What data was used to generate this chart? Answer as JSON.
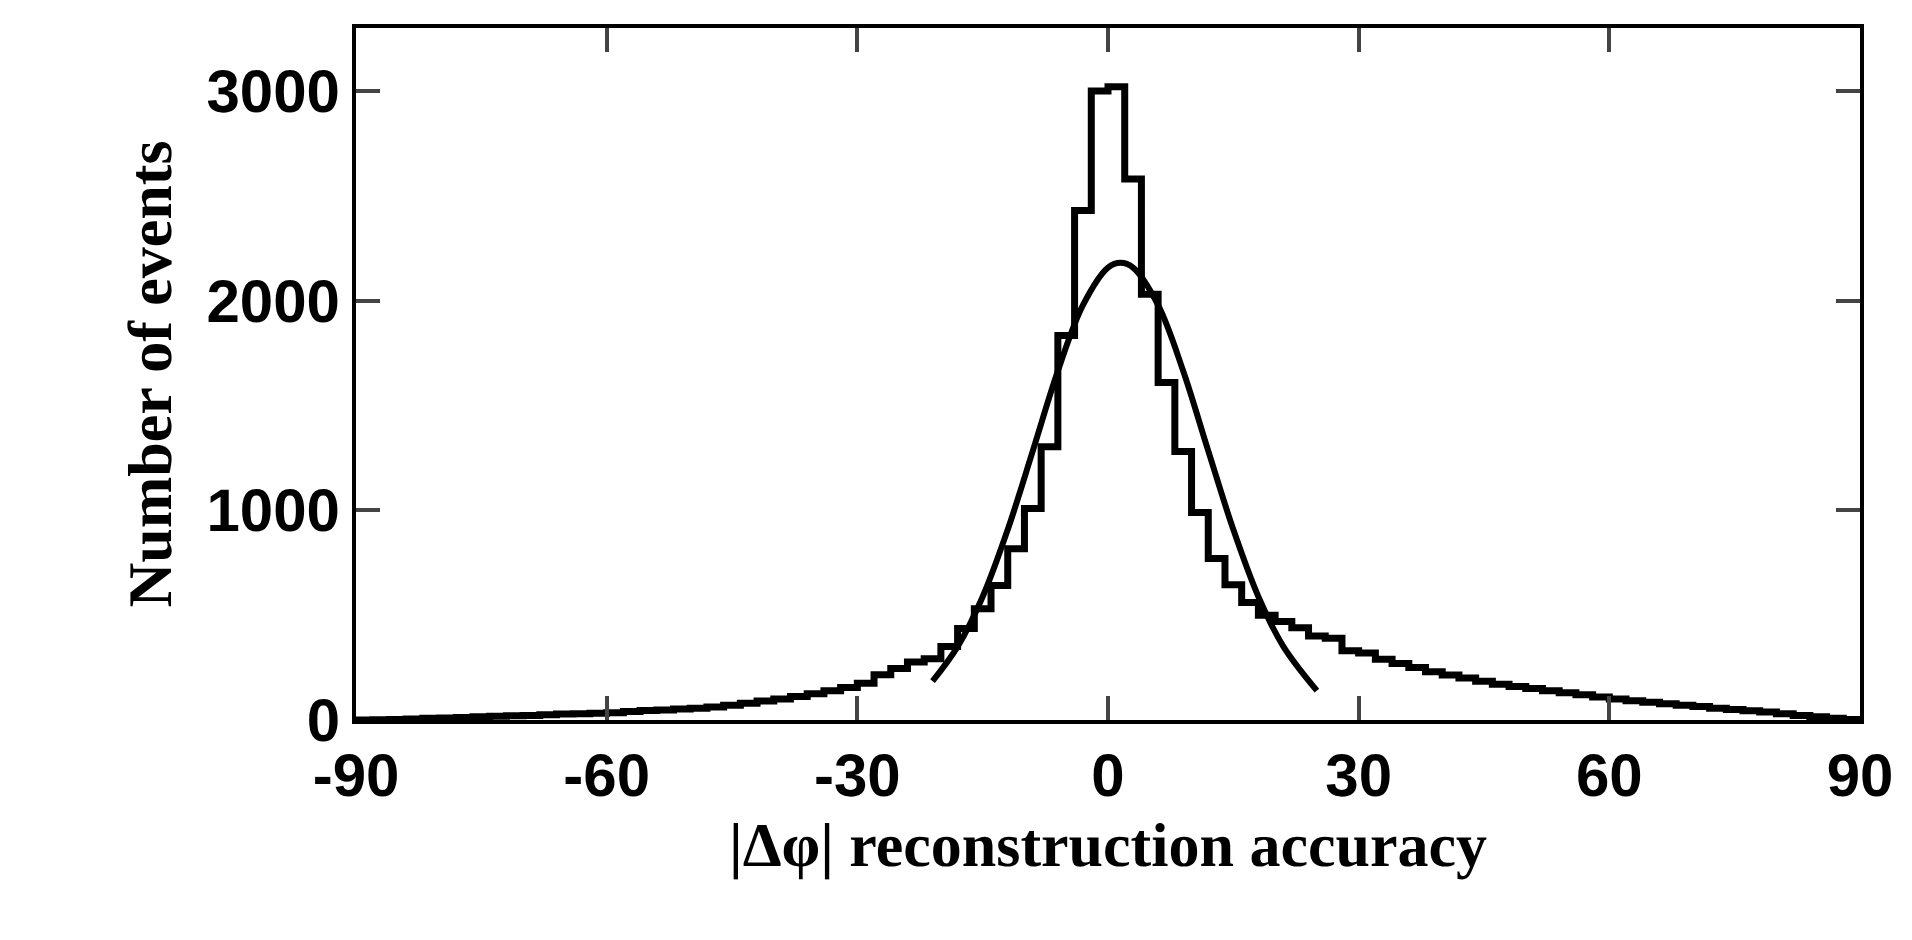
{
  "chart_data": {
    "type": "histogram",
    "xlabel": "|Δφ| reconstruction accuracy",
    "ylabel": "Number of events",
    "bins": [
      -90,
      -88,
      -86,
      -84,
      -82,
      -80,
      -78,
      -76,
      -74,
      -72,
      -70,
      -68,
      -66,
      -64,
      -62,
      -60,
      -58,
      -56,
      -54,
      -52,
      -50,
      -48,
      -46,
      -44,
      -42,
      -40,
      -38,
      -36,
      -34,
      -32,
      -30,
      -28,
      -26,
      -24,
      -22,
      -20,
      -18,
      -16,
      -14,
      -12,
      -10,
      -8,
      -6,
      -4,
      -2,
      0,
      2,
      4,
      6,
      8,
      10,
      12,
      14,
      16,
      18,
      20,
      22,
      24,
      26,
      28,
      30,
      32,
      34,
      36,
      38,
      40,
      42,
      44,
      46,
      48,
      50,
      52,
      54,
      56,
      58,
      60,
      62,
      64,
      66,
      68,
      70,
      72,
      74,
      76,
      78,
      80,
      82,
      84,
      86,
      88,
      90
    ],
    "values": [
      0,
      1,
      3,
      5,
      8,
      10,
      12,
      15,
      18,
      20,
      22,
      25,
      28,
      30,
      32,
      35,
      40,
      45,
      48,
      52,
      56,
      62,
      70,
      80,
      90,
      100,
      112,
      125,
      140,
      155,
      175,
      216,
      245,
      277,
      292,
      350,
      436,
      531,
      642,
      817,
      1008,
      1303,
      1834,
      2430,
      3000,
      3020,
      2580,
      2030,
      1610,
      1280,
      990,
      770,
      645,
      560,
      500,
      470,
      440,
      400,
      390,
      330,
      320,
      290,
      270,
      250,
      230,
      215,
      200,
      185,
      170,
      160,
      150,
      140,
      130,
      120,
      110,
      100,
      92,
      85,
      78,
      70,
      64,
      56,
      50,
      44,
      38,
      30,
      22,
      15,
      8,
      3
    ],
    "color": "#000000",
    "series": [
      {
        "type": "line",
        "color": "#000000",
        "x": [
          -21,
          -18,
          -15,
          -12,
          -9,
          -6,
          -3,
          0,
          1.5,
          3,
          6,
          9,
          12,
          15,
          18,
          21,
          25
        ],
        "values": [
          185,
          350,
          588,
          908,
          1283,
          1664,
          1978,
          2157,
          2180,
          2157,
          1978,
          1664,
          1283,
          908,
          588,
          350,
          140
        ]
      }
    ],
    "xlim": [
      -90,
      90
    ],
    "xticks": [
      -90,
      -60,
      -30,
      0,
      30,
      60,
      90
    ],
    "ylim": [
      0,
      3300
    ],
    "yticks": [
      0,
      1000,
      2000,
      3000
    ],
    "grid": false
  }
}
